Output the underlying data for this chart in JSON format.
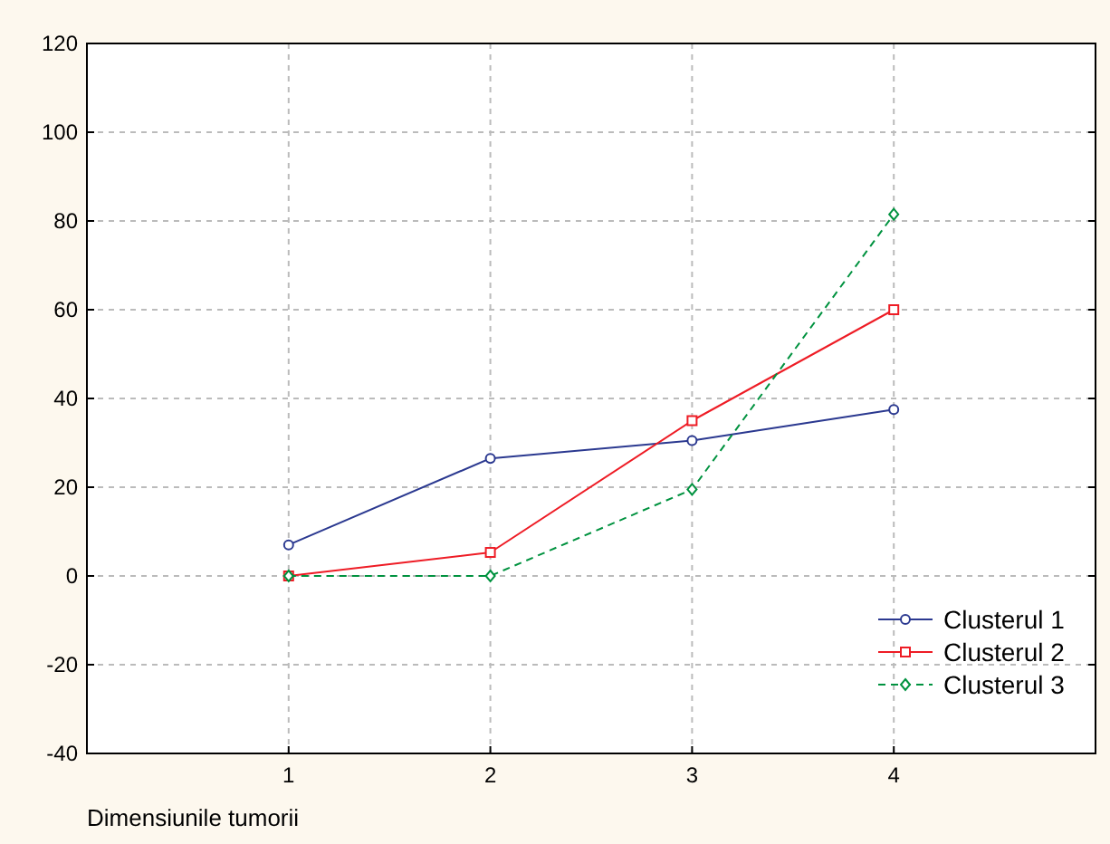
{
  "chart_data": {
    "type": "line",
    "xlabel": "Dimensiunile tumorii",
    "x": [
      1,
      2,
      3,
      4
    ],
    "xlim": [
      0,
      5
    ],
    "xticks": [
      1,
      2,
      3,
      4
    ],
    "ylim": [
      -40,
      120
    ],
    "yticks": [
      -40,
      -20,
      0,
      20,
      40,
      60,
      80,
      100,
      120
    ],
    "grid": true,
    "legend": "bottom right",
    "series": [
      {
        "name": "Clusterul 1",
        "color": "#2b3990",
        "values": [
          7,
          26.5,
          30.5,
          37.5
        ],
        "marker": "circle",
        "line_style": "solid"
      },
      {
        "name": "Clusterul 2",
        "color": "#ee1c25",
        "values": [
          0,
          5.3,
          35,
          60
        ],
        "marker": "square",
        "line_style": "solid"
      },
      {
        "name": "Clusterul 3",
        "color": "#00923f",
        "values": [
          0,
          0,
          19.5,
          81.5
        ],
        "marker": "diamond",
        "line_style": "dashed"
      }
    ]
  }
}
